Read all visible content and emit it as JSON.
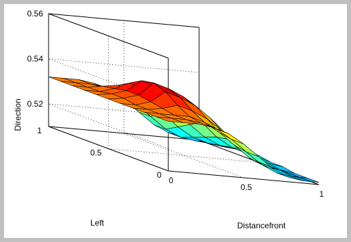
{
  "chart_data": {
    "type": "surface",
    "xlabel": "Distancefront",
    "ylabel": "Left",
    "zlabel": "Direction",
    "x_ticks": [
      "0",
      "0.5",
      "1"
    ],
    "y_ticks": [
      "0",
      "0.5",
      "1"
    ],
    "z_ticks": [
      "0.52",
      "0.54",
      "0.56"
    ],
    "xlim": [
      0,
      1
    ],
    "ylim": [
      0,
      1
    ],
    "zlim": [
      0.51,
      0.56
    ],
    "grid": true,
    "colormap": "jet",
    "x": [
      0,
      0.1,
      0.2,
      0.3,
      0.4,
      0.5,
      0.6,
      0.7,
      0.8,
      0.9,
      1
    ],
    "y": [
      0,
      0.1,
      0.2,
      0.3,
      0.4,
      0.5,
      0.6,
      0.7,
      0.8,
      0.9,
      1
    ],
    "z": [
      [
        0.532,
        0.532,
        0.532,
        0.531,
        0.529,
        0.525,
        0.52,
        0.515,
        0.512,
        0.511,
        0.511
      ],
      [
        0.532,
        0.532,
        0.532,
        0.531,
        0.529,
        0.525,
        0.52,
        0.515,
        0.512,
        0.511,
        0.511
      ],
      [
        0.532,
        0.532,
        0.532,
        0.532,
        0.53,
        0.526,
        0.521,
        0.516,
        0.513,
        0.512,
        0.511
      ],
      [
        0.532,
        0.532,
        0.533,
        0.535,
        0.533,
        0.53,
        0.525,
        0.52,
        0.516,
        0.513,
        0.512
      ],
      [
        0.532,
        0.532,
        0.534,
        0.539,
        0.537,
        0.534,
        0.529,
        0.523,
        0.518,
        0.514,
        0.512
      ],
      [
        0.532,
        0.533,
        0.535,
        0.541,
        0.539,
        0.536,
        0.531,
        0.525,
        0.519,
        0.515,
        0.513
      ],
      [
        0.532,
        0.533,
        0.535,
        0.54,
        0.538,
        0.535,
        0.53,
        0.524,
        0.518,
        0.514,
        0.512
      ],
      [
        0.532,
        0.532,
        0.534,
        0.537,
        0.535,
        0.532,
        0.527,
        0.521,
        0.516,
        0.513,
        0.512
      ],
      [
        0.532,
        0.532,
        0.533,
        0.534,
        0.532,
        0.529,
        0.524,
        0.518,
        0.514,
        0.512,
        0.511
      ],
      [
        0.532,
        0.532,
        0.532,
        0.531,
        0.529,
        0.525,
        0.52,
        0.515,
        0.512,
        0.511,
        0.511
      ],
      [
        0.532,
        0.532,
        0.532,
        0.531,
        0.529,
        0.525,
        0.52,
        0.515,
        0.512,
        0.511,
        0.511
      ]
    ]
  }
}
